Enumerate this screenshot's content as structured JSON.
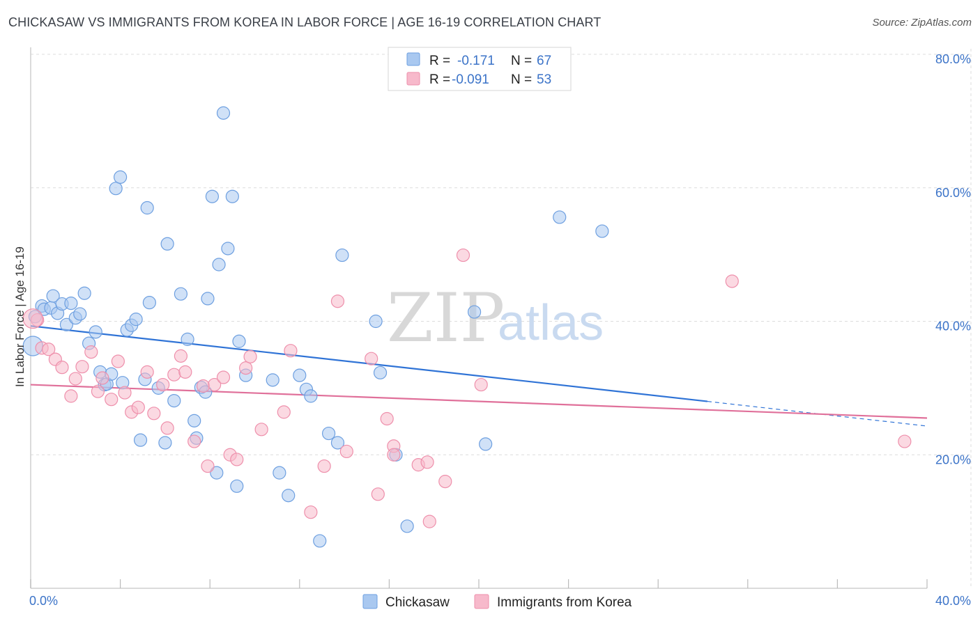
{
  "title": "CHICKASAW VS IMMIGRANTS FROM KOREA IN LABOR FORCE | AGE 16-19 CORRELATION CHART",
  "source": "Source: ZipAtlas.com",
  "colors": {
    "blue_fill": "#a9c8f0",
    "blue_stroke": "#6d9fe0",
    "blue_line": "#2f73d6",
    "pink_fill": "#f7b9cb",
    "pink_stroke": "#ee8fab",
    "pink_line": "#e0709a",
    "grid": "#dcdcdc",
    "tick_text": "#3b73c8"
  },
  "watermark": {
    "zip": "ZIP",
    "atlas": "atlas"
  },
  "legend_top": {
    "rows": [
      {
        "r_label": "R =",
        "r_value": "-0.171",
        "n_label": "N =",
        "n_value": "67",
        "color": "blue"
      },
      {
        "r_label": "R =",
        "r_value": "-0.091",
        "n_label": "N =",
        "n_value": "53",
        "color": "pink"
      }
    ]
  },
  "legend_bottom": [
    {
      "label": "Chickasaw",
      "color": "blue"
    },
    {
      "label": "Immigrants from Korea",
      "color": "pink"
    }
  ],
  "chart_data": {
    "type": "scatter",
    "title": "CHICKASAW VS IMMIGRANTS FROM KOREA IN LABOR FORCE | AGE 16-19 CORRELATION CHART",
    "xlabel": "",
    "ylabel": "In Labor Force | Age 16-19",
    "xlim": [
      0,
      40
    ],
    "ylim": [
      0,
      80
    ],
    "x_tick_labels": [
      "0.0%",
      "40.0%"
    ],
    "y_ticks": [
      20,
      40,
      60,
      80
    ],
    "y_tick_labels": [
      "20.0%",
      "40.0%",
      "60.0%",
      "80.0%"
    ],
    "grid": true,
    "legend_placement": "bottom-center",
    "series": [
      {
        "name": "Chickasaw",
        "color": "blue",
        "trend": {
          "x0": 0,
          "y0": 39.3,
          "x1": 30.2,
          "y1": 28.0,
          "dash_x1": 40,
          "dash_y1": 24.3
        },
        "points": [
          [
            0.1,
            36.3
          ],
          [
            0.2,
            40.7
          ],
          [
            0.5,
            42.3
          ],
          [
            0.6,
            41.8
          ],
          [
            0.9,
            42.0
          ],
          [
            1.0,
            43.8
          ],
          [
            1.2,
            41.2
          ],
          [
            1.4,
            42.6
          ],
          [
            1.6,
            39.5
          ],
          [
            1.8,
            42.7
          ],
          [
            2.0,
            40.5
          ],
          [
            2.2,
            41.1
          ],
          [
            2.4,
            44.2
          ],
          [
            2.6,
            36.7
          ],
          [
            2.9,
            38.4
          ],
          [
            3.1,
            32.4
          ],
          [
            3.3,
            30.5
          ],
          [
            3.4,
            30.6
          ],
          [
            3.6,
            32.1
          ],
          [
            3.8,
            59.9
          ],
          [
            4.0,
            61.6
          ],
          [
            4.1,
            30.8
          ],
          [
            4.3,
            38.7
          ],
          [
            4.5,
            39.4
          ],
          [
            4.7,
            40.3
          ],
          [
            4.9,
            22.2
          ],
          [
            5.1,
            31.3
          ],
          [
            5.2,
            57.0
          ],
          [
            5.3,
            42.8
          ],
          [
            5.7,
            30.0
          ],
          [
            6.0,
            21.8
          ],
          [
            6.1,
            51.6
          ],
          [
            6.4,
            28.1
          ],
          [
            6.7,
            44.1
          ],
          [
            7.0,
            37.3
          ],
          [
            7.3,
            25.1
          ],
          [
            7.4,
            22.5
          ],
          [
            7.6,
            30.1
          ],
          [
            7.8,
            29.4
          ],
          [
            7.9,
            43.4
          ],
          [
            8.1,
            58.7
          ],
          [
            8.3,
            17.3
          ],
          [
            8.4,
            48.5
          ],
          [
            8.6,
            71.2
          ],
          [
            8.8,
            50.9
          ],
          [
            9.0,
            58.7
          ],
          [
            9.2,
            15.3
          ],
          [
            9.3,
            37.0
          ],
          [
            9.6,
            31.9
          ],
          [
            10.8,
            31.2
          ],
          [
            11.1,
            17.3
          ],
          [
            11.5,
            13.9
          ],
          [
            12.0,
            31.9
          ],
          [
            12.3,
            29.8
          ],
          [
            12.5,
            28.8
          ],
          [
            12.9,
            7.1
          ],
          [
            13.3,
            23.2
          ],
          [
            13.7,
            21.8
          ],
          [
            13.9,
            49.9
          ],
          [
            15.4,
            40.0
          ],
          [
            15.6,
            32.3
          ],
          [
            16.3,
            20.0
          ],
          [
            16.8,
            9.3
          ],
          [
            19.8,
            41.4
          ],
          [
            20.3,
            21.6
          ],
          [
            23.6,
            55.6
          ],
          [
            25.5,
            53.5
          ]
        ]
      },
      {
        "name": "Immigrants from Korea",
        "color": "pink",
        "trend": {
          "x0": 0,
          "y0": 30.5,
          "x1": 40,
          "y1": 25.5
        },
        "points": [
          [
            0.3,
            40.2
          ],
          [
            0.5,
            36.0
          ],
          [
            0.8,
            35.8
          ],
          [
            1.1,
            34.3
          ],
          [
            1.4,
            33.1
          ],
          [
            1.8,
            28.8
          ],
          [
            2.0,
            31.4
          ],
          [
            2.3,
            33.2
          ],
          [
            2.7,
            35.4
          ],
          [
            3.0,
            29.5
          ],
          [
            3.2,
            31.5
          ],
          [
            3.6,
            28.3
          ],
          [
            3.9,
            34.0
          ],
          [
            4.2,
            29.3
          ],
          [
            4.5,
            26.4
          ],
          [
            4.8,
            27.1
          ],
          [
            5.2,
            32.4
          ],
          [
            5.5,
            26.2
          ],
          [
            5.9,
            30.5
          ],
          [
            6.1,
            24.0
          ],
          [
            6.4,
            32.0
          ],
          [
            6.7,
            34.8
          ],
          [
            6.9,
            32.4
          ],
          [
            7.3,
            22.0
          ],
          [
            7.7,
            30.3
          ],
          [
            7.9,
            18.3
          ],
          [
            8.2,
            30.5
          ],
          [
            8.6,
            31.6
          ],
          [
            8.9,
            20.0
          ],
          [
            9.2,
            19.3
          ],
          [
            9.6,
            33.0
          ],
          [
            9.8,
            34.7
          ],
          [
            10.3,
            23.8
          ],
          [
            11.3,
            26.4
          ],
          [
            11.6,
            35.6
          ],
          [
            12.5,
            11.4
          ],
          [
            13.1,
            18.3
          ],
          [
            13.7,
            43.0
          ],
          [
            14.1,
            20.5
          ],
          [
            15.2,
            34.4
          ],
          [
            15.5,
            14.1
          ],
          [
            15.9,
            25.4
          ],
          [
            16.2,
            21.3
          ],
          [
            16.2,
            20.0
          ],
          [
            17.3,
            18.5
          ],
          [
            17.7,
            18.9
          ],
          [
            17.8,
            10.0
          ],
          [
            18.5,
            16.0
          ],
          [
            19.3,
            49.9
          ],
          [
            20.1,
            30.5
          ],
          [
            31.3,
            46.0
          ],
          [
            39.0,
            22.0
          ],
          [
            0.1,
            40.4
          ]
        ]
      }
    ]
  }
}
